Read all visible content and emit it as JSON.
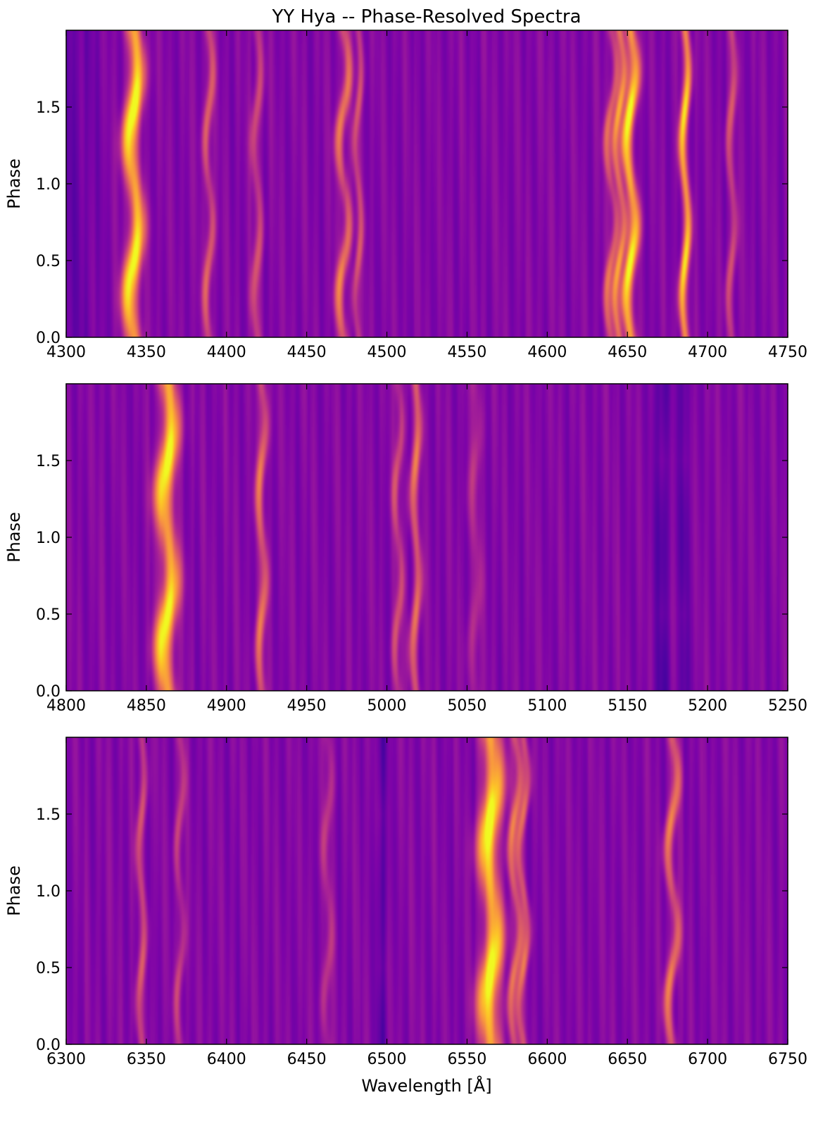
{
  "title": "YY Hya -- Phase-Resolved Spectra",
  "xlabel": "Wavelength [Å]",
  "colormap": "plasma",
  "chart_data": [
    {
      "type": "heatmap",
      "ylabel": "Phase",
      "xlim": [
        4300,
        4750
      ],
      "ylim": [
        0.0,
        2.0
      ],
      "xticks": [
        "4300",
        "4350",
        "4400",
        "4450",
        "4500",
        "4550",
        "4600",
        "4650",
        "4700",
        "4750"
      ],
      "yticks": [
        "0.0",
        "0.5",
        "1.0",
        "1.5"
      ],
      "emission_lines": [
        {
          "wavelength": 4342,
          "strength": 1.0,
          "width": 3.5,
          "amplitude": 3
        },
        {
          "wavelength": 4389,
          "strength": 0.45,
          "width": 1.8,
          "amplitude": 2
        },
        {
          "wavelength": 4419,
          "strength": 0.35,
          "width": 2.0,
          "amplitude": 2
        },
        {
          "wavelength": 4473,
          "strength": 0.55,
          "width": 2.2,
          "amplitude": 3
        },
        {
          "wavelength": 4482,
          "strength": 0.35,
          "width": 1.6,
          "amplitude": 2
        },
        {
          "wavelength": 4640,
          "strength": 0.45,
          "width": 1.8,
          "amplitude": 3
        },
        {
          "wavelength": 4645,
          "strength": 0.65,
          "width": 1.8,
          "amplitude": 3
        },
        {
          "wavelength": 4652,
          "strength": 0.95,
          "width": 2.5,
          "amplitude": 3
        },
        {
          "wavelength": 4686,
          "strength": 0.85,
          "width": 1.8,
          "amplitude": 2
        },
        {
          "wavelength": 4715,
          "strength": 0.35,
          "width": 1.8,
          "amplitude": 2
        }
      ]
    },
    {
      "type": "heatmap",
      "ylabel": "Phase",
      "xlim": [
        4800,
        5250
      ],
      "ylim": [
        0.0,
        2.0
      ],
      "xticks": [
        "4800",
        "4850",
        "4900",
        "4950",
        "5000",
        "5050",
        "5100",
        "5150",
        "5200",
        "5250"
      ],
      "yticks": [
        "0.0",
        "0.5",
        "1.0",
        "1.5"
      ],
      "emission_lines": [
        {
          "wavelength": 4863,
          "strength": 1.0,
          "width": 4.0,
          "amplitude": 3
        },
        {
          "wavelength": 4922,
          "strength": 0.5,
          "width": 2.0,
          "amplitude": 2
        },
        {
          "wavelength": 5007,
          "strength": 0.35,
          "width": 1.8,
          "amplitude": 2
        },
        {
          "wavelength": 5018,
          "strength": 0.5,
          "width": 2.0,
          "amplitude": 2
        },
        {
          "wavelength": 5055,
          "strength": 0.2,
          "width": 2.5,
          "amplitude": 2
        }
      ],
      "absorption_lines": [
        {
          "wavelength": 5172,
          "strength": 0.5,
          "width": 3.0
        },
        {
          "wavelength": 5185,
          "strength": 0.4,
          "width": 2.5
        }
      ]
    },
    {
      "type": "heatmap",
      "ylabel": "Phase",
      "xlim": [
        6300,
        6750
      ],
      "ylim": [
        0.0,
        2.0
      ],
      "xticks": [
        "6300",
        "6350",
        "6400",
        "6450",
        "6500",
        "6550",
        "6600",
        "6650",
        "6700",
        "6750"
      ],
      "yticks": [
        "0.0",
        "0.5",
        "1.0",
        "1.5"
      ],
      "emission_lines": [
        {
          "wavelength": 6347,
          "strength": 0.35,
          "width": 1.8,
          "amplitude": 2
        },
        {
          "wavelength": 6371,
          "strength": 0.3,
          "width": 1.8,
          "amplitude": 2
        },
        {
          "wavelength": 6463,
          "strength": 0.25,
          "width": 2.0,
          "amplitude": 2
        },
        {
          "wavelength": 6565,
          "strength": 1.0,
          "width": 4.5,
          "amplitude": 3
        },
        {
          "wavelength": 6580,
          "strength": 0.5,
          "width": 2.0,
          "amplitude": 3
        },
        {
          "wavelength": 6585,
          "strength": 0.45,
          "width": 1.8,
          "amplitude": 3
        },
        {
          "wavelength": 6678,
          "strength": 0.55,
          "width": 2.2,
          "amplitude": 3
        }
      ],
      "absorption_lines": [
        {
          "wavelength": 6497,
          "strength": 0.4,
          "width": 2.5
        }
      ]
    }
  ]
}
